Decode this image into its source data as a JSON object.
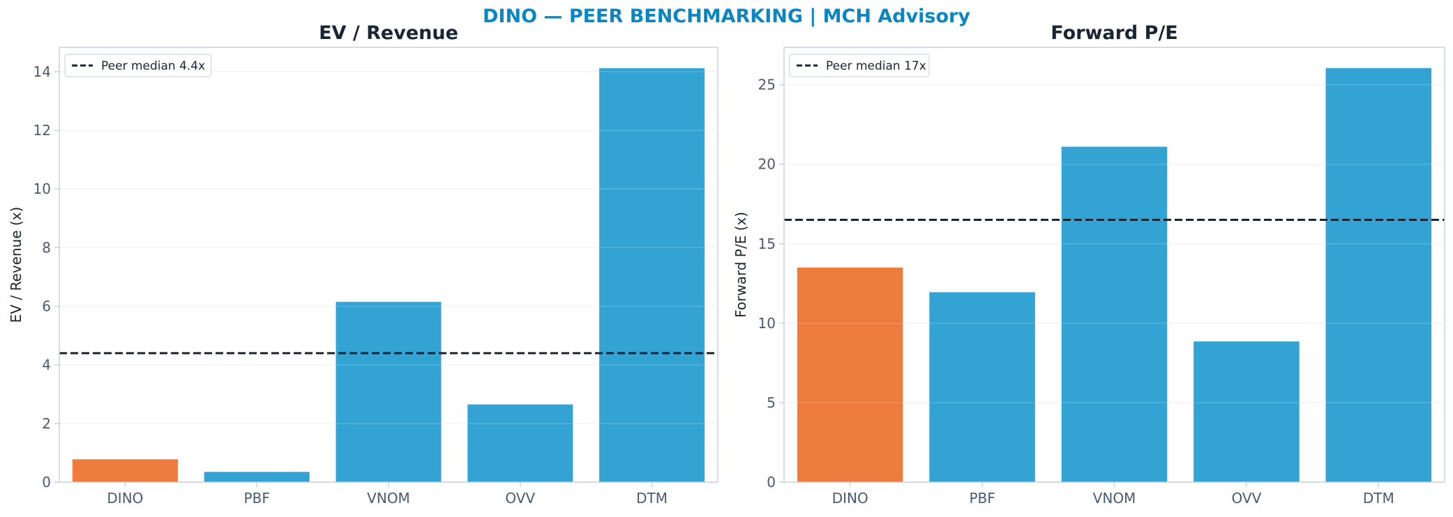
{
  "figure": {
    "suptitle": "DINO — PEER BENCHMARKING | MCH Advisory",
    "suptitle_color": "#0a87c2"
  },
  "colors": {
    "subject": "#ed7b3e",
    "peer": "#33a3d4",
    "median_line": "#1a2533",
    "axis": "#c9d2dc",
    "grid": "#eef1f4"
  },
  "chart_data": [
    {
      "type": "bar",
      "title": "EV / Revenue",
      "ylabel": "EV / Revenue (x)",
      "xlabel": "",
      "categories": [
        "DINO",
        "PBF",
        "VNOM",
        "OVV",
        "DTM"
      ],
      "values": [
        0.78,
        0.35,
        6.15,
        2.65,
        14.12
      ],
      "highlight": "DINO",
      "ylim": [
        0,
        14.83
      ],
      "yticks": [
        0,
        2,
        4,
        6,
        8,
        10,
        12,
        14
      ],
      "reference_line": {
        "label": "Peer median 4.4x",
        "value": 4.4,
        "style": "dashed"
      },
      "legend_position": "upper left",
      "grid": true
    },
    {
      "type": "bar",
      "title": "Forward P/E",
      "ylabel": "Forward P/E (x)",
      "xlabel": "",
      "categories": [
        "DINO",
        "PBF",
        "VNOM",
        "OVV",
        "DTM"
      ],
      "values": [
        13.5,
        11.95,
        21.1,
        8.85,
        26.05
      ],
      "highlight": "DINO",
      "ylim": [
        0,
        27.35
      ],
      "yticks": [
        0,
        5,
        10,
        15,
        20,
        25
      ],
      "reference_line": {
        "label": "Peer median 17x",
        "value": 16.5,
        "style": "dashed"
      },
      "legend_position": "upper left",
      "grid": true
    }
  ]
}
